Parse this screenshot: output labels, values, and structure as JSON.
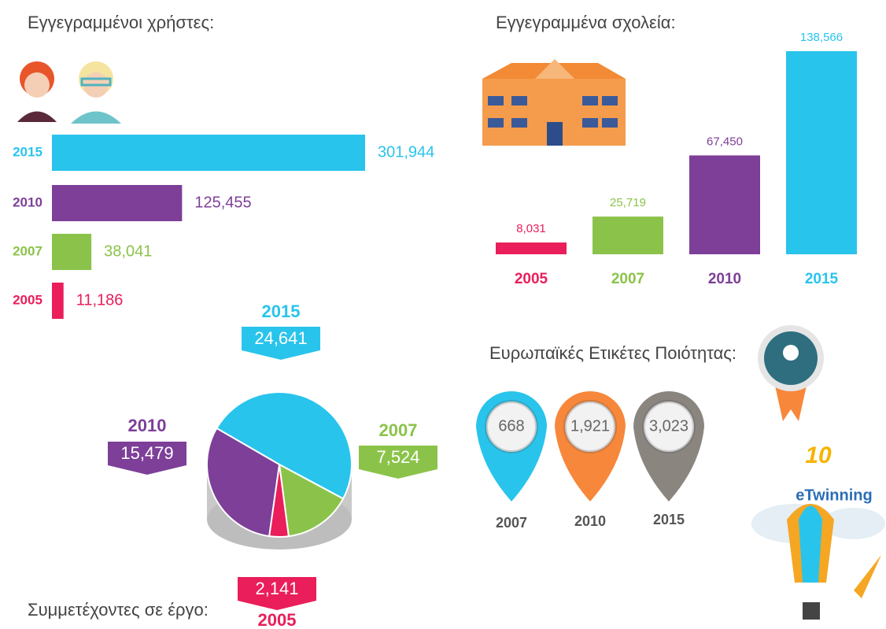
{
  "chart_data": [
    {
      "type": "hbar",
      "title": "Εγγεγραμμένοι χρήστες:",
      "categories": [
        "2015",
        "2010",
        "2007",
        "2005"
      ],
      "values": [
        301944,
        125455,
        38041,
        11186
      ],
      "value_labels": [
        "301,944",
        "125,455",
        "38,041",
        "11,186"
      ],
      "colors": [
        "#29c4ec",
        "#7d3f98",
        "#8bc34a",
        "#e91e5a"
      ]
    },
    {
      "type": "bar",
      "title": "Εγγεγραμμένα σχολεία:",
      "categories": [
        "2005",
        "2007",
        "2010",
        "2015"
      ],
      "values": [
        8031,
        25719,
        67450,
        138566
      ],
      "value_labels": [
        "8,031",
        "25,719",
        "67,450",
        "138,566"
      ],
      "colors": [
        "#e91e5a",
        "#8bc34a",
        "#7d3f98",
        "#29c4ec"
      ]
    },
    {
      "type": "pie",
      "title": "Συμμετέχοντες σε έργο:",
      "categories": [
        "2015",
        "2007",
        "2005",
        "2010"
      ],
      "values": [
        24641,
        7524,
        2141,
        15479
      ],
      "value_labels": [
        "24,641",
        "7,524",
        "2,141",
        "15,479"
      ],
      "colors": [
        "#29c4ec",
        "#8bc34a",
        "#e91e5a",
        "#7d3f98"
      ]
    },
    {
      "type": "pin",
      "title": "Ευρωπαϊκές Ετικέτες Ποιότητας:",
      "categories": [
        "2007",
        "2010",
        "2015"
      ],
      "values": [
        668,
        1921,
        3023
      ],
      "value_labels": [
        "668",
        "1,921",
        "3,023"
      ],
      "colors": [
        "#29c4ec",
        "#f7873a",
        "#8b8580"
      ]
    }
  ],
  "logo": {
    "number": "10",
    "name": "eTwinning"
  }
}
